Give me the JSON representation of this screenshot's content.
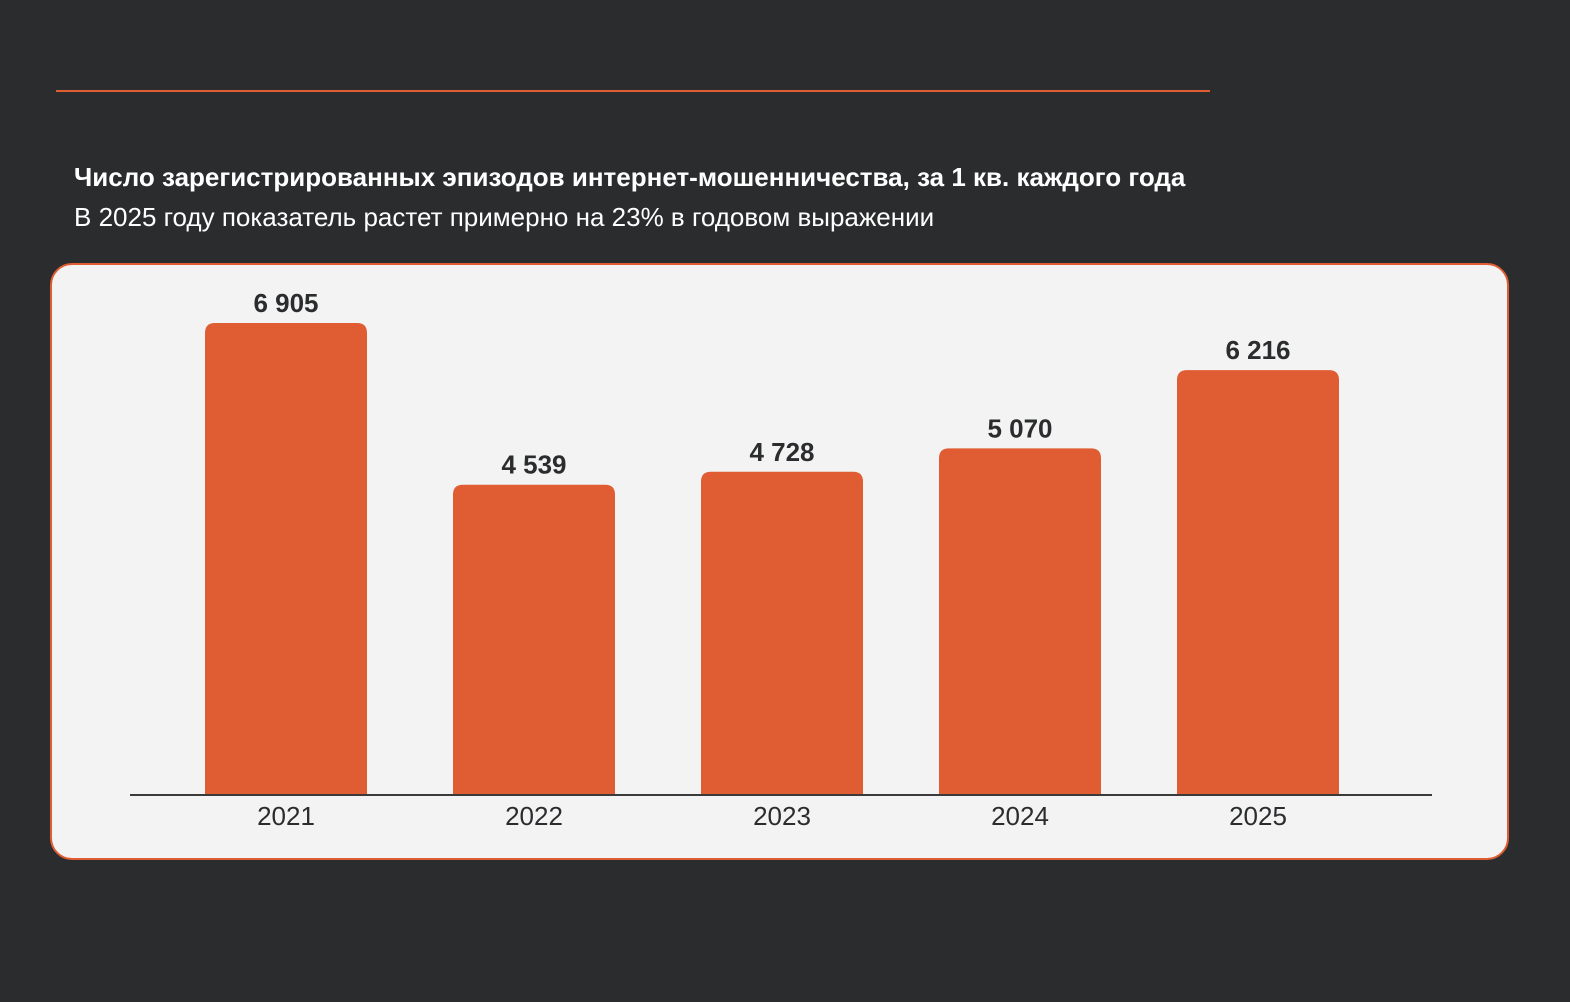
{
  "chart_data": {
    "type": "bar",
    "title": "Число зарегистрированных эпизодов интернет-мошенничества, за 1 кв. каждого года",
    "subtitle": "В 2025 году показатель растет примерно на 23% в годовом выражении",
    "categories": [
      "2021",
      "2022",
      "2023",
      "2024",
      "2025"
    ],
    "values": [
      6905,
      4539,
      4728,
      5070,
      6216
    ],
    "value_labels": [
      "6 905",
      "4 539",
      "4 728",
      "5 070",
      "6 216"
    ],
    "xlabel": "",
    "ylabel": "",
    "ylim": [
      0,
      8000
    ],
    "grid": false,
    "legend": "none"
  },
  "colors": {
    "background": "#2b2c2e",
    "accent": "#e05d34",
    "bar": "#e05d34",
    "card": "#f3f3f3",
    "text_dark": "#2b2c2e",
    "text_light": "#ffffff"
  }
}
